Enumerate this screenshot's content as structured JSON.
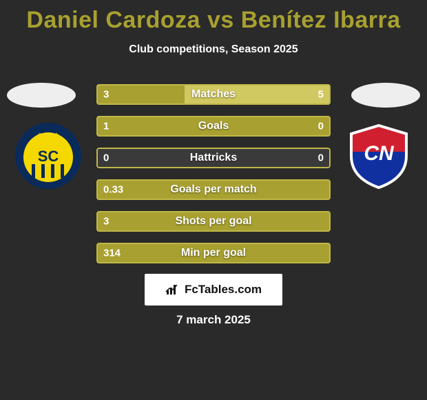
{
  "title_color": "#a8a030",
  "title_parts": {
    "player1": "Daniel Cardoza",
    "vs": "vs",
    "player2": "Benítez Ibarra"
  },
  "subtitle": "Club competitions, Season 2025",
  "date": "7 march 2025",
  "watermark": "FcTables.com",
  "colors": {
    "bar_primary": "#a8a030",
    "bar_border": "#c0b848",
    "bar_right_fill": "#d0c860",
    "background": "#2a2a2a"
  },
  "badge_left": {
    "bg": "#eeeeee"
  },
  "badge_right": {
    "bg": "#eeeeee"
  },
  "crest_left": {
    "bg_circle": "#0a2a5a",
    "inner_circle": "#f5d800",
    "stripes": "#0a2a5a",
    "stars": "#f5d800"
  },
  "crest_right": {
    "shield_top": "#d02030",
    "shield_bottom": "#1030a0",
    "shield_border": "#ffffff",
    "letters": "CN"
  },
  "bars": [
    {
      "label": "Matches",
      "left": "3",
      "right": "5",
      "left_frac": 0.375,
      "right_frac": 0.625
    },
    {
      "label": "Goals",
      "left": "1",
      "right": "0",
      "left_frac": 1.0,
      "right_frac": 0.0
    },
    {
      "label": "Hattricks",
      "left": "0",
      "right": "0",
      "left_frac": 0.0,
      "right_frac": 0.0
    },
    {
      "label": "Goals per match",
      "left": "0.33",
      "right": "",
      "left_frac": 1.0,
      "right_frac": 0.0
    },
    {
      "label": "Shots per goal",
      "left": "3",
      "right": "",
      "left_frac": 1.0,
      "right_frac": 0.0
    },
    {
      "label": "Min per goal",
      "left": "314",
      "right": "",
      "left_frac": 1.0,
      "right_frac": 0.0
    }
  ]
}
